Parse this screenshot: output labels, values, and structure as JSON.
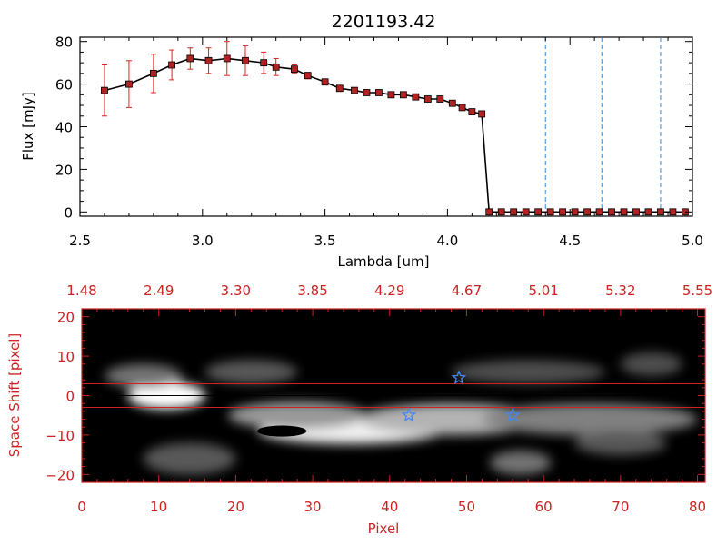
{
  "chart_data": [
    {
      "type": "line",
      "title": "2201193.42",
      "xlabel": "Lambda [um]",
      "ylabel": "Flux [mJy]",
      "xlim": [
        2.5,
        5.0
      ],
      "ylim": [
        -2,
        82
      ],
      "xticks": [
        2.5,
        3.0,
        3.5,
        4.0,
        4.5,
        5.0
      ],
      "xtick_labels": [
        "2.5",
        "3.0",
        "3.5",
        "4.0",
        "4.5",
        "5.0"
      ],
      "yticks": [
        0,
        20,
        40,
        60,
        80
      ],
      "ytick_labels": [
        "0",
        "20",
        "40",
        "60",
        "80"
      ],
      "series": [
        {
          "name": "flux",
          "color": "#000000",
          "marker_color": "#b22222",
          "error_color": "#dd2222",
          "x": [
            2.6,
            2.7,
            2.8,
            2.875,
            2.95,
            3.025,
            3.1,
            3.175,
            3.25,
            3.3,
            3.375,
            3.43,
            3.5,
            3.56,
            3.62,
            3.67,
            3.72,
            3.77,
            3.82,
            3.87,
            3.92,
            3.97,
            4.02,
            4.06,
            4.1,
            4.14,
            4.17,
            4.22,
            4.27,
            4.32,
            4.37,
            4.42,
            4.47,
            4.52,
            4.57,
            4.62,
            4.67,
            4.72,
            4.77,
            4.82,
            4.87,
            4.92,
            4.97
          ],
          "y": [
            57,
            60,
            65,
            69,
            72,
            71,
            72,
            71,
            70,
            68,
            67,
            64,
            61,
            58,
            57,
            56,
            56,
            55,
            55,
            54,
            53,
            53,
            51,
            49,
            47,
            46,
            0,
            0,
            0,
            0,
            0,
            0,
            0,
            0,
            0,
            0,
            0,
            0,
            0,
            0,
            0,
            0,
            0
          ],
          "yerr": [
            12,
            11,
            9,
            7,
            5,
            6,
            8,
            7,
            5,
            4,
            2,
            1.5,
            1,
            1,
            1,
            0.8,
            0.8,
            0.8,
            0.8,
            0.8,
            0.8,
            0.8,
            0.8,
            0.8,
            0.8,
            0.8,
            0,
            0,
            0,
            0,
            0,
            0,
            0,
            0,
            0,
            0,
            0,
            0,
            0,
            0,
            0,
            0,
            0
          ]
        }
      ],
      "vlines": {
        "x": [
          4.4,
          4.63,
          4.87
        ],
        "color": "#3388dd",
        "style": "dashed"
      },
      "hline": {
        "y": 0,
        "color": "#dd2222",
        "style": "dashed",
        "x_from": 4.17
      }
    },
    {
      "type": "heatmap",
      "xlabel": "Pixel",
      "ylabel": "Space Shift [pixel]",
      "xlim": [
        0,
        81
      ],
      "ylim": [
        -22,
        22
      ],
      "xticks": [
        0,
        10,
        20,
        30,
        40,
        50,
        60,
        70,
        80
      ],
      "xtick_labels": [
        "0",
        "10",
        "20",
        "30",
        "40",
        "50",
        "60",
        "70",
        "80"
      ],
      "yticks": [
        -20,
        -10,
        0,
        10,
        20
      ],
      "ytick_labels": [
        "−20",
        "−10",
        "0",
        "10",
        "20"
      ],
      "top_tick_labels": [
        "1.48",
        "2.49",
        "3.30",
        "3.85",
        "4.29",
        "4.67",
        "5.01",
        "5.32",
        "5.55"
      ],
      "hlines": {
        "y": [
          3,
          -3
        ],
        "color": "#cc2222"
      },
      "center_line": {
        "y": 0,
        "color": "#000000"
      },
      "stars": [
        {
          "x": 49,
          "y": 4.5
        },
        {
          "x": 42.5,
          "y": -5
        },
        {
          "x": 56,
          "y": -5
        }
      ],
      "star_color": "#4488ee",
      "blobs": [
        {
          "x": 11,
          "y": 0,
          "rx": 5,
          "ry": 3.5,
          "level": 1.0
        },
        {
          "x": 35,
          "y": -9,
          "rx": 12,
          "ry": 3.2,
          "level": 0.95
        },
        {
          "x": 28,
          "y": -5,
          "rx": 9,
          "ry": 3.5,
          "level": 0.6
        },
        {
          "x": 48,
          "y": -6,
          "rx": 12,
          "ry": 4,
          "level": 0.7
        },
        {
          "x": 66,
          "y": -6,
          "rx": 14,
          "ry": 4,
          "level": 0.5
        },
        {
          "x": 70,
          "y": -12,
          "rx": 6,
          "ry": 3,
          "level": 0.35
        },
        {
          "x": 8,
          "y": 5,
          "rx": 5,
          "ry": 3,
          "level": 0.45
        },
        {
          "x": 22,
          "y": 6,
          "rx": 6,
          "ry": 3,
          "level": 0.35
        },
        {
          "x": 58,
          "y": 6,
          "rx": 10,
          "ry": 3,
          "level": 0.3
        },
        {
          "x": 14,
          "y": -16,
          "rx": 6,
          "ry": 4,
          "level": 0.35
        },
        {
          "x": 57,
          "y": -17,
          "rx": 4,
          "ry": 3,
          "level": 0.45
        },
        {
          "x": 74,
          "y": 8,
          "rx": 4,
          "ry": 3,
          "level": 0.3
        }
      ],
      "dark_spot": {
        "x": 26,
        "y": -9,
        "rx": 3.2,
        "ry": 1.4
      }
    }
  ]
}
